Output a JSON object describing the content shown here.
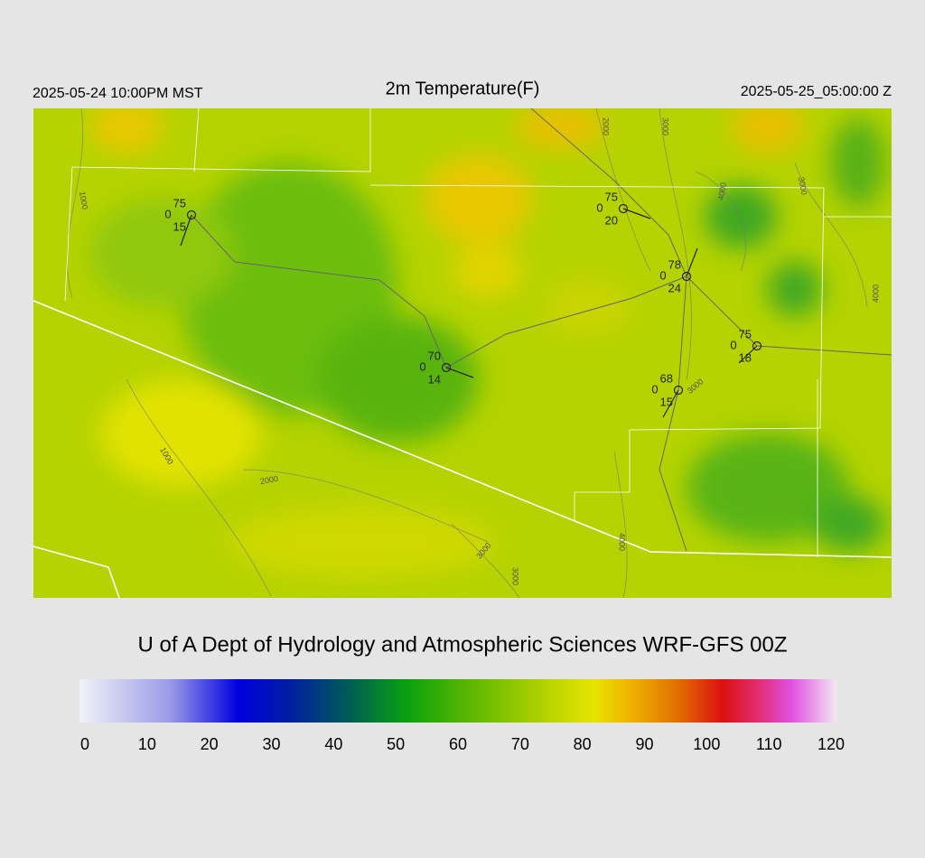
{
  "header": {
    "left": "2025-05-24 10:00PM MST",
    "title": "2m Temperature(F)",
    "right": "2025-05-25_05:00:00 Z"
  },
  "stations": [
    {
      "top": "75",
      "left": "0",
      "bottom": "15"
    },
    {
      "top": "75",
      "left": "0",
      "bottom": "20"
    },
    {
      "top": "78",
      "left": "0",
      "bottom": "24"
    },
    {
      "top": "75",
      "left": "0",
      "bottom": "18"
    },
    {
      "top": "70",
      "left": "0",
      "bottom": "14"
    },
    {
      "top": "68",
      "left": "0",
      "bottom": "15"
    }
  ],
  "contour_labels": [
    "1000",
    "2000",
    "3000",
    "4000",
    "3000",
    "4000",
    "1000",
    "2000",
    "3000",
    "3000",
    "3000",
    "4000"
  ],
  "footer": "U of A Dept of Hydrology and Atmospheric Sciences WRF-GFS 00Z",
  "colorbar": {
    "ticks": [
      0,
      10,
      20,
      30,
      40,
      50,
      60,
      70,
      80,
      90,
      100,
      110,
      120
    ]
  }
}
